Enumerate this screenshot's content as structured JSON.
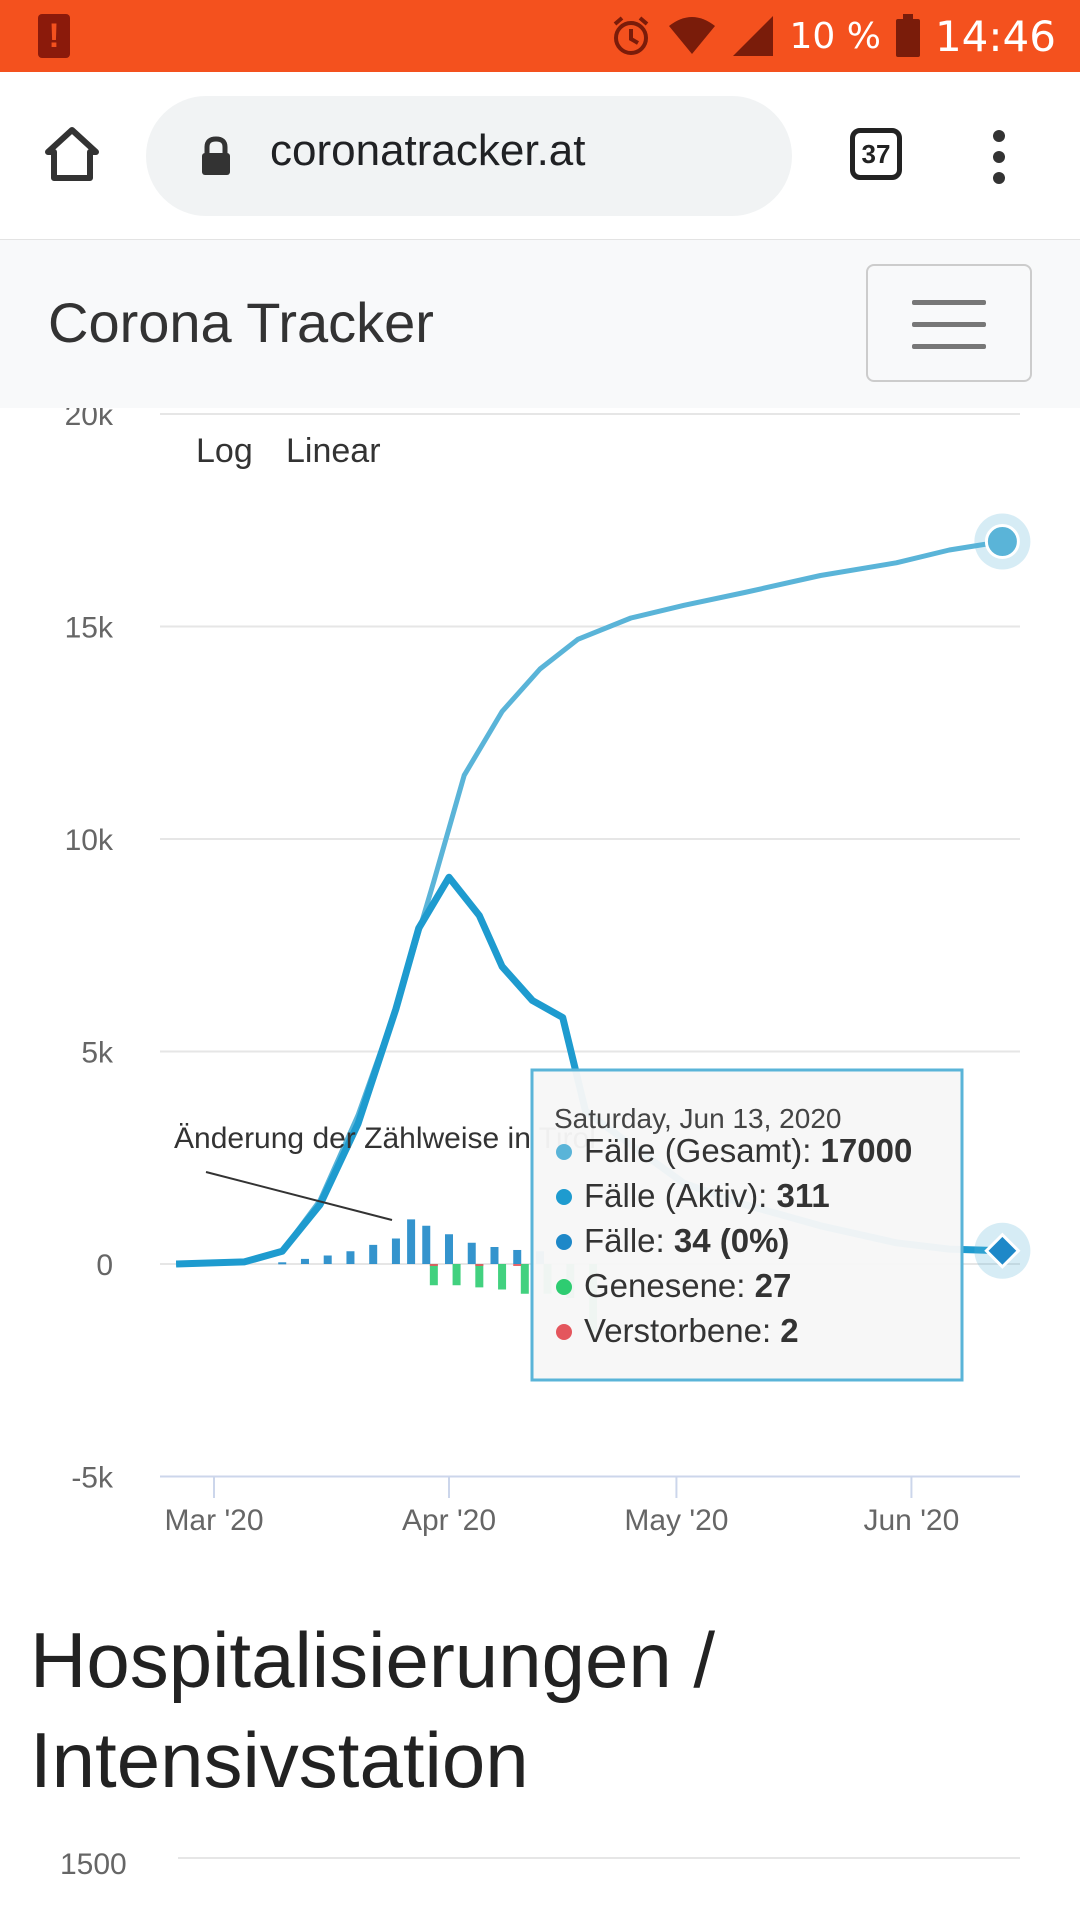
{
  "status_bar": {
    "battery_percent": "10 %",
    "time": "14:46",
    "icons": [
      "battery-warning-icon",
      "alarm-icon",
      "wifi-icon",
      "signal-icon",
      "battery-icon"
    ]
  },
  "browser": {
    "url": "coronatracker.at",
    "tab_count": "37",
    "icons": [
      "home-icon",
      "lock-icon",
      "tabs-icon",
      "more-vert-icon"
    ]
  },
  "navbar": {
    "brand": "Corona Tracker",
    "toggler_icon": "hamburger-icon"
  },
  "chart_controls": {
    "log": "Log",
    "linear": "Linear"
  },
  "chart_data": {
    "type": "line",
    "x_labels": [
      "Mar '20",
      "Apr '20",
      "May '20",
      "Jun '20"
    ],
    "y_ticks": [
      "20k",
      "15k",
      "10k",
      "5k",
      "0",
      "-5k"
    ],
    "ylim": [
      -5000,
      20000
    ],
    "series": [
      {
        "name": "Fälle (Gesamt)",
        "color": "#5ab4d8",
        "kind": "line",
        "x": [
          "2020-02-25",
          "2020-03-05",
          "2020-03-10",
          "2020-03-15",
          "2020-03-20",
          "2020-03-25",
          "2020-03-30",
          "2020-04-03",
          "2020-04-08",
          "2020-04-13",
          "2020-04-18",
          "2020-04-25",
          "2020-05-02",
          "2020-05-10",
          "2020-05-20",
          "2020-05-30",
          "2020-06-06",
          "2020-06-13"
        ],
        "y": [
          0,
          50,
          300,
          1500,
          3500,
          6000,
          9000,
          11500,
          13000,
          14000,
          14700,
          15200,
          15500,
          15800,
          16200,
          16500,
          16800,
          17000
        ]
      },
      {
        "name": "Fälle (Aktiv)",
        "color": "#1e9bcf",
        "kind": "line",
        "x": [
          "2020-02-25",
          "2020-03-05",
          "2020-03-10",
          "2020-03-15",
          "2020-03-20",
          "2020-03-25",
          "2020-03-28",
          "2020-04-01",
          "2020-04-05",
          "2020-04-08",
          "2020-04-12",
          "2020-04-16",
          "2020-04-19",
          "2020-04-25",
          "2020-05-02",
          "2020-05-10",
          "2020-05-20",
          "2020-05-30",
          "2020-06-06",
          "2020-06-13"
        ],
        "y": [
          0,
          50,
          300,
          1400,
          3300,
          6000,
          7900,
          9100,
          8200,
          7000,
          6200,
          5800,
          3600,
          2800,
          1900,
          1400,
          900,
          500,
          350,
          311
        ]
      },
      {
        "name": "Fälle",
        "color": "#1e88c8",
        "kind": "bar",
        "x": [
          "2020-03-10",
          "2020-03-13",
          "2020-03-16",
          "2020-03-19",
          "2020-03-22",
          "2020-03-25",
          "2020-03-27",
          "2020-03-29",
          "2020-04-01",
          "2020-04-04",
          "2020-04-07",
          "2020-04-10",
          "2020-04-13"
        ],
        "y": [
          40,
          120,
          200,
          300,
          450,
          600,
          1050,
          900,
          700,
          500,
          400,
          330,
          300
        ]
      },
      {
        "name": "Genesene",
        "color": "#2ecc71",
        "kind": "bar",
        "x": [
          "2020-03-30",
          "2020-04-02",
          "2020-04-05",
          "2020-04-08",
          "2020-04-11",
          "2020-04-14",
          "2020-04-17",
          "2020-04-20"
        ],
        "y": [
          -500,
          -500,
          -550,
          -600,
          -700,
          -700,
          -800,
          -1600
        ]
      },
      {
        "name": "Verstorbene",
        "color": "#e4565d",
        "kind": "bar",
        "x": [
          "2020-03-30",
          "2020-04-05",
          "2020-04-10"
        ],
        "y": [
          -20,
          -30,
          -25
        ]
      }
    ],
    "annotation": "Änderung der Zählweise in Tirol",
    "tooltip": {
      "date": "Saturday, Jun 13, 2020",
      "rows": [
        {
          "label": "Fälle (Gesamt): ",
          "value": "17000",
          "color": "#5ab4d8"
        },
        {
          "label": "Fälle (Aktiv): ",
          "value": "311",
          "color": "#1e9bcf"
        },
        {
          "label": "Fälle: ",
          "value": "34 (0%)",
          "color": "#1e88c8"
        },
        {
          "label": "Genesene: ",
          "value": "27",
          "color": "#2ecc71"
        },
        {
          "label": "Verstorbene: ",
          "value": "2",
          "color": "#e4565d"
        }
      ]
    }
  },
  "section2": {
    "title_line1": "Hospitalisierungen /",
    "title_line2": "Intensivstation",
    "first_tick": "1500"
  }
}
